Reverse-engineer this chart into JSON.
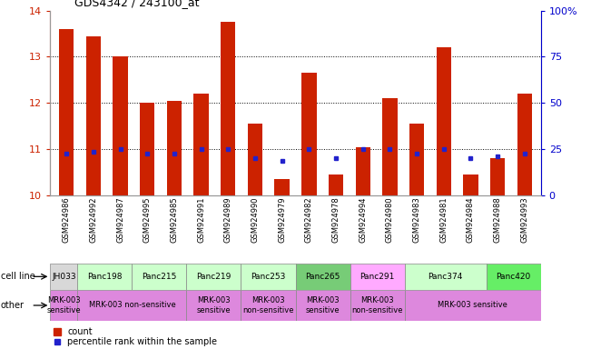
{
  "title": "GDS4342 / 243100_at",
  "gsm_labels": [
    "GSM924986",
    "GSM924992",
    "GSM924987",
    "GSM924995",
    "GSM924985",
    "GSM924991",
    "GSM924989",
    "GSM924990",
    "GSM924979",
    "GSM924982",
    "GSM924978",
    "GSM924994",
    "GSM924980",
    "GSM924983",
    "GSM924981",
    "GSM924984",
    "GSM924988",
    "GSM924993"
  ],
  "bar_heights": [
    13.6,
    13.45,
    13.0,
    12.0,
    12.05,
    12.2,
    13.75,
    11.55,
    10.35,
    12.65,
    10.45,
    11.05,
    12.1,
    11.55,
    13.2,
    10.45,
    10.8,
    12.2
  ],
  "blue_y": [
    10.9,
    10.95,
    11.0,
    10.9,
    10.9,
    11.0,
    11.0,
    10.8,
    10.75,
    11.0,
    10.8,
    11.0,
    11.0,
    10.9,
    11.0,
    10.8,
    10.85,
    10.9
  ],
  "ylim": [
    10,
    14
  ],
  "yticks_left": [
    10,
    11,
    12,
    13,
    14
  ],
  "yticks_right_vals": [
    0,
    25,
    50,
    75,
    100
  ],
  "cell_lines": [
    {
      "label": "JH033",
      "start": 0,
      "end": 1,
      "color": "#d8d8d8"
    },
    {
      "label": "Panc198",
      "start": 1,
      "end": 3,
      "color": "#ccffcc"
    },
    {
      "label": "Panc215",
      "start": 3,
      "end": 5,
      "color": "#ccffcc"
    },
    {
      "label": "Panc219",
      "start": 5,
      "end": 7,
      "color": "#ccffcc"
    },
    {
      "label": "Panc253",
      "start": 7,
      "end": 9,
      "color": "#ccffcc"
    },
    {
      "label": "Panc265",
      "start": 9,
      "end": 11,
      "color": "#77cc77"
    },
    {
      "label": "Panc291",
      "start": 11,
      "end": 13,
      "color": "#ffaaff"
    },
    {
      "label": "Panc374",
      "start": 13,
      "end": 16,
      "color": "#ccffcc"
    },
    {
      "label": "Panc420",
      "start": 16,
      "end": 18,
      "color": "#66ee66"
    }
  ],
  "other_groups": [
    {
      "label": "MRK-003\nsensitive",
      "start": 0,
      "end": 1,
      "color": "#dd88dd"
    },
    {
      "label": "MRK-003 non-sensitive",
      "start": 1,
      "end": 5,
      "color": "#dd88dd"
    },
    {
      "label": "MRK-003\nsensitive",
      "start": 5,
      "end": 7,
      "color": "#dd88dd"
    },
    {
      "label": "MRK-003\nnon-sensitive",
      "start": 7,
      "end": 9,
      "color": "#dd88dd"
    },
    {
      "label": "MRK-003\nsensitive",
      "start": 9,
      "end": 11,
      "color": "#dd88dd"
    },
    {
      "label": "MRK-003\nnon-sensitive",
      "start": 11,
      "end": 13,
      "color": "#dd88dd"
    },
    {
      "label": "MRK-003 sensitive",
      "start": 13,
      "end": 18,
      "color": "#dd88dd"
    }
  ],
  "bar_color": "#cc2200",
  "blue_color": "#2222cc",
  "bg_color": "#ffffff",
  "left_axis_color": "#cc2200",
  "right_axis_color": "#0000cc",
  "bar_width": 0.55
}
